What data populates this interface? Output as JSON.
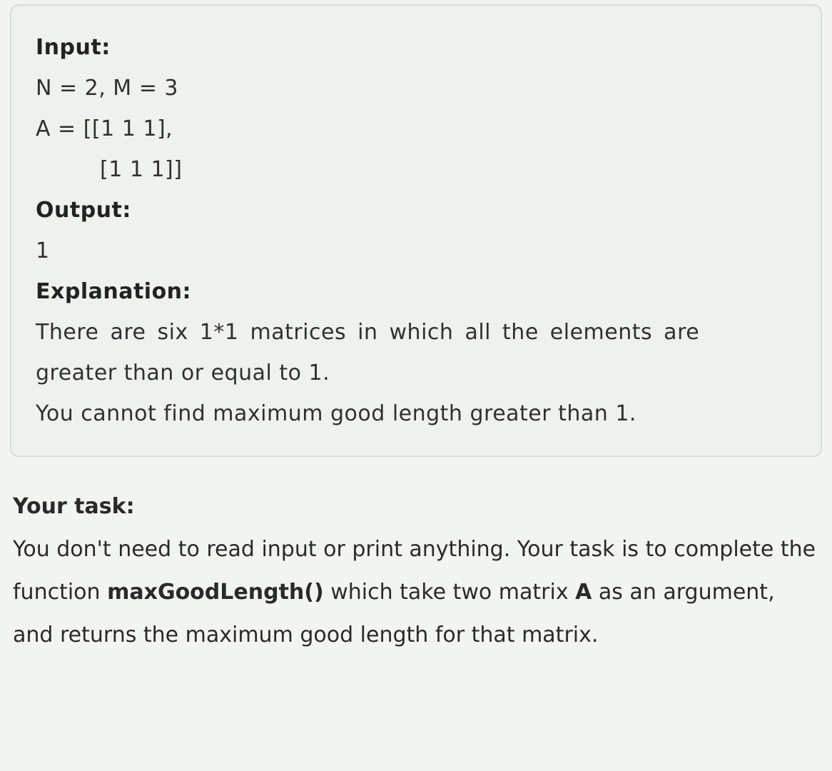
{
  "example": {
    "input_label": "Input:",
    "input_line1": "N = 2, M = 3",
    "input_line2": "A = [[1 1 1],",
    "input_line3": "[1 1 1]]",
    "output_label": "Output:",
    "output_value": "1",
    "explanation_label": "Explanation:",
    "explanation_line1": "There are six 1*1 matrices in which all the elements are",
    "explanation_line2": "greater than or equal to 1.",
    "explanation_line3": "You cannot find maximum good length greater than 1."
  },
  "task": {
    "heading": "Your task:",
    "body_prefix": "You don't need to read input or print anything. Your task is to complete the function ",
    "fn_name": "maxGoodLength()",
    "body_mid": " which take two matrix ",
    "matrix_name": "A",
    "body_suffix": " as an argument, and returns the maximum good length for that matrix."
  },
  "colors": {
    "page_bg": "#f2f4f2",
    "box_bg": "#eef2ef",
    "box_border": "#d7dcd9",
    "text": "#2a2a2a"
  },
  "typography": {
    "font_size_pt": 22,
    "line_height": 1.9,
    "font_family": "DejaVu Sans / Segoe UI / Arial"
  }
}
